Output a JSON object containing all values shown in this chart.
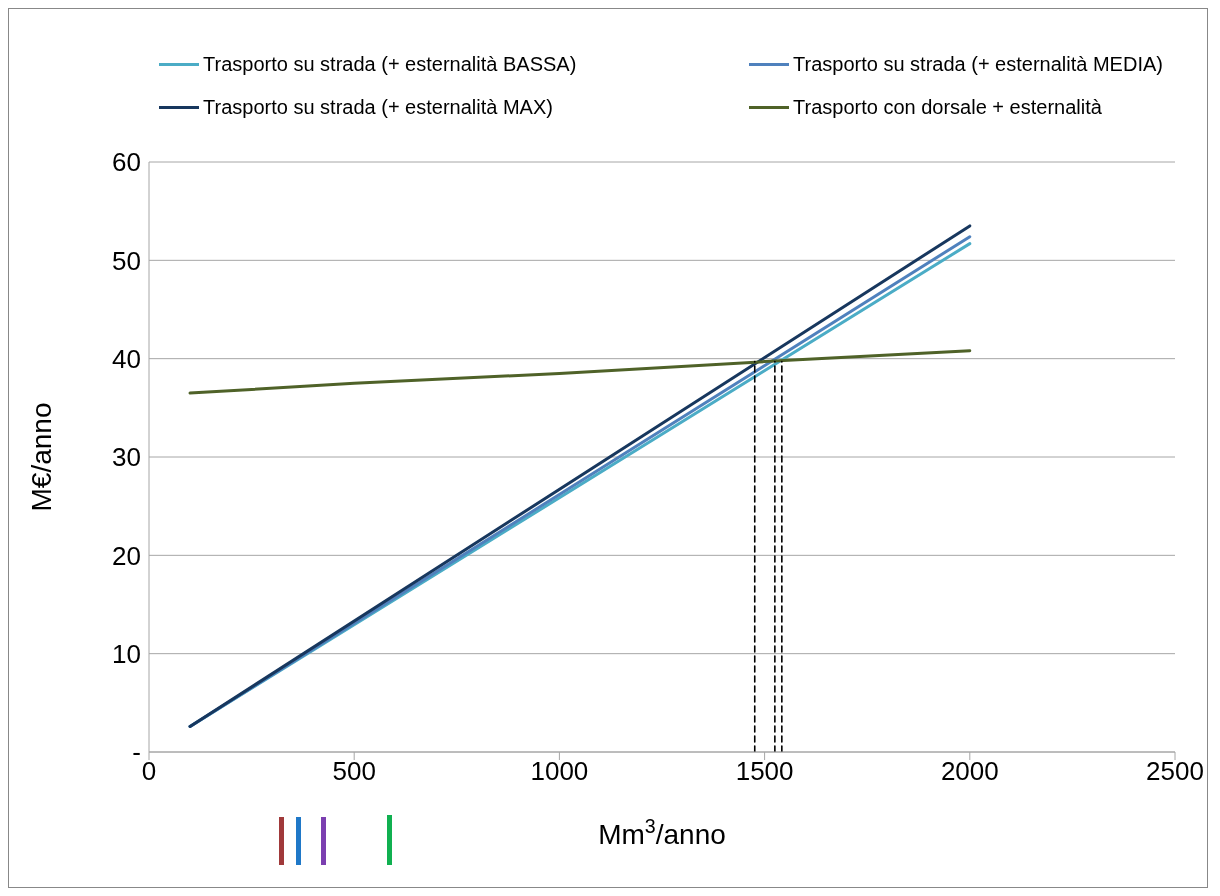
{
  "chart_data": {
    "type": "line",
    "xlabel": "Mm$^{3}$/anno",
    "ylabel": "M€/anno",
    "xlim": [
      0,
      2500
    ],
    "xticks": [
      0,
      500,
      1000,
      1500,
      2000,
      2500
    ],
    "ylim": [
      0,
      60
    ],
    "yticks": [
      {
        "value": 0,
        "label": "-"
      },
      10,
      20,
      30,
      40,
      50,
      60
    ],
    "grid": "y",
    "legend": "top",
    "marker": "none",
    "line_style": "solid",
    "series": [
      {
        "name": "Trasporto su strada (+ esternalità BASSA)",
        "color": "#4bacc6",
        "x": [
          100,
          2000
        ],
        "values": [
          2.6,
          51.7
        ]
      },
      {
        "name": "Trasporto su strada (+ esternalità MEDIA)",
        "color": "#4f81bd",
        "x": [
          100,
          2000
        ],
        "values": [
          2.6,
          52.4
        ]
      },
      {
        "name": "Trasporto su strada (+ esternalità MAX)",
        "color": "#17375e",
        "x": [
          100,
          2000
        ],
        "values": [
          2.6,
          53.5
        ]
      },
      {
        "name": "Trasporto con dorsale + esternalità",
        "color": "#4f6228",
        "x": [
          100,
          500,
          1000,
          1500,
          2000
        ],
        "values": [
          36.5,
          37.5,
          38.5,
          39.7,
          40.8
        ]
      },
      {
        "color": "#000000",
        "line_style": "dashed",
        "x": [
          1476,
          1476
        ],
        "values": [
          0,
          39.7
        ]
      },
      {
        "color": "#000000",
        "line_style": "dashed",
        "x": [
          1525,
          1525
        ],
        "values": [
          0,
          39.7
        ]
      },
      {
        "color": "#000000",
        "line_style": "dashed",
        "x": [
          1542,
          1542
        ],
        "values": [
          0,
          39.7
        ]
      }
    ]
  }
}
